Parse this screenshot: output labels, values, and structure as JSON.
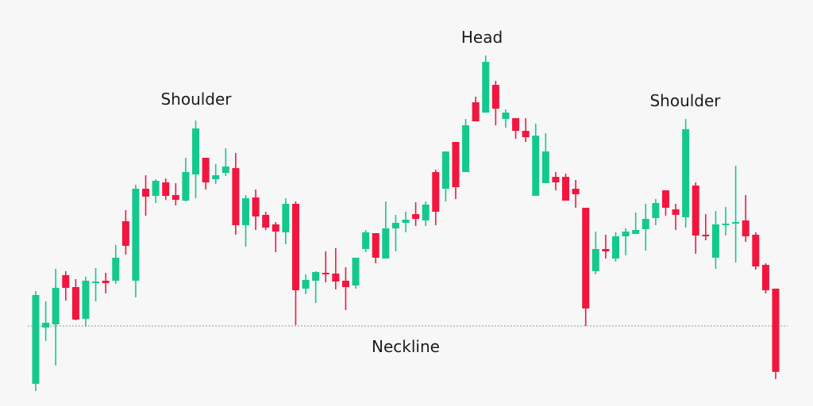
{
  "chart_data": {
    "type": "candlestick",
    "title": "",
    "xlabel": "",
    "ylabel": "",
    "grid": false,
    "colors": {
      "up": "#14c98e",
      "down": "#f2163f",
      "neckline": "#b5b5b5",
      "background": "#f7f7f7",
      "text": "#1c1c1c"
    },
    "neckline": 89,
    "annotations": {
      "left_shoulder": "Shoulder",
      "head": "Head",
      "right_shoulder": "Shoulder",
      "neckline": "Neckline"
    },
    "ohlc_fields": [
      "open",
      "high",
      "low",
      "close"
    ],
    "candles": [
      [
        16,
        133,
        7,
        128
      ],
      [
        87,
        120,
        70,
        93
      ],
      [
        91,
        161,
        39,
        137
      ],
      [
        153,
        158,
        121,
        137
      ],
      [
        138,
        148,
        96,
        97
      ],
      [
        98,
        151,
        88,
        146
      ],
      [
        144,
        162,
        120,
        145
      ],
      [
        146,
        156,
        130,
        143
      ],
      [
        146,
        191,
        142,
        175
      ],
      [
        221,
        235,
        179,
        190
      ],
      [
        146,
        267,
        125,
        262
      ],
      [
        262,
        279,
        228,
        252
      ],
      [
        253,
        274,
        244,
        272
      ],
      [
        270,
        275,
        248,
        253
      ],
      [
        254,
        269,
        241,
        248
      ],
      [
        247,
        301,
        246,
        283
      ],
      [
        280,
        348,
        250,
        338
      ],
      [
        301,
        301,
        261,
        270
      ],
      [
        274,
        293,
        268,
        279
      ],
      [
        282,
        313,
        278,
        290
      ],
      [
        288,
        307,
        204,
        216
      ],
      [
        216,
        254,
        189,
        250
      ],
      [
        251,
        261,
        210,
        227
      ],
      [
        229,
        233,
        210,
        213
      ],
      [
        217,
        220,
        182,
        208
      ],
      [
        207,
        250,
        192,
        243
      ],
      [
        243,
        246,
        90,
        134
      ],
      [
        136,
        154,
        129,
        147
      ],
      [
        146,
        158,
        118,
        157
      ],
      [
        156,
        183,
        144,
        155
      ],
      [
        155,
        187,
        135,
        145
      ],
      [
        146,
        163,
        109,
        138
      ],
      [
        140,
        175,
        136,
        175
      ],
      [
        186,
        210,
        182,
        207
      ],
      [
        206,
        206,
        168,
        175
      ],
      [
        174,
        246,
        174,
        212
      ],
      [
        212,
        229,
        183,
        219
      ],
      [
        219,
        233,
        207,
        223
      ],
      [
        230,
        245,
        215,
        224
      ],
      [
        222,
        246,
        215,
        242
      ],
      [
        283,
        286,
        216,
        233
      ],
      [
        262,
        309,
        246,
        309
      ],
      [
        321,
        321,
        249,
        264
      ],
      [
        283,
        350,
        283,
        342
      ],
      [
        371,
        378,
        347,
        347
      ],
      [
        358,
        430,
        358,
        422
      ],
      [
        393,
        398,
        342,
        363
      ],
      [
        350,
        362,
        339,
        358
      ],
      [
        351,
        351,
        325,
        335
      ],
      [
        335,
        351,
        321,
        327
      ],
      [
        253,
        344,
        253,
        329
      ],
      [
        269,
        332,
        269,
        309
      ],
      [
        277,
        283,
        260,
        270
      ],
      [
        277,
        281,
        247,
        247
      ],
      [
        262,
        273,
        238,
        255
      ],
      [
        238,
        238,
        89,
        111
      ],
      [
        158,
        208,
        154,
        186
      ],
      [
        186,
        204,
        174,
        183
      ],
      [
        174,
        207,
        170,
        202
      ],
      [
        202,
        212,
        178,
        208
      ],
      [
        205,
        232,
        205,
        210
      ],
      [
        211,
        243,
        184,
        224
      ],
      [
        225,
        249,
        216,
        244
      ],
      [
        260,
        260,
        228,
        238
      ],
      [
        236,
        243,
        210,
        229
      ],
      [
        226,
        350,
        213,
        337
      ],
      [
        266,
        270,
        180,
        203
      ],
      [
        204,
        230,
        197,
        202
      ],
      [
        175,
        234,
        161,
        217
      ],
      [
        217,
        239,
        203,
        218
      ],
      [
        219,
        291,
        169,
        220
      ],
      [
        222,
        254,
        195,
        202
      ],
      [
        204,
        207,
        160,
        164
      ],
      [
        166,
        168,
        130,
        134
      ],
      [
        136,
        136,
        22,
        31
      ]
    ]
  }
}
